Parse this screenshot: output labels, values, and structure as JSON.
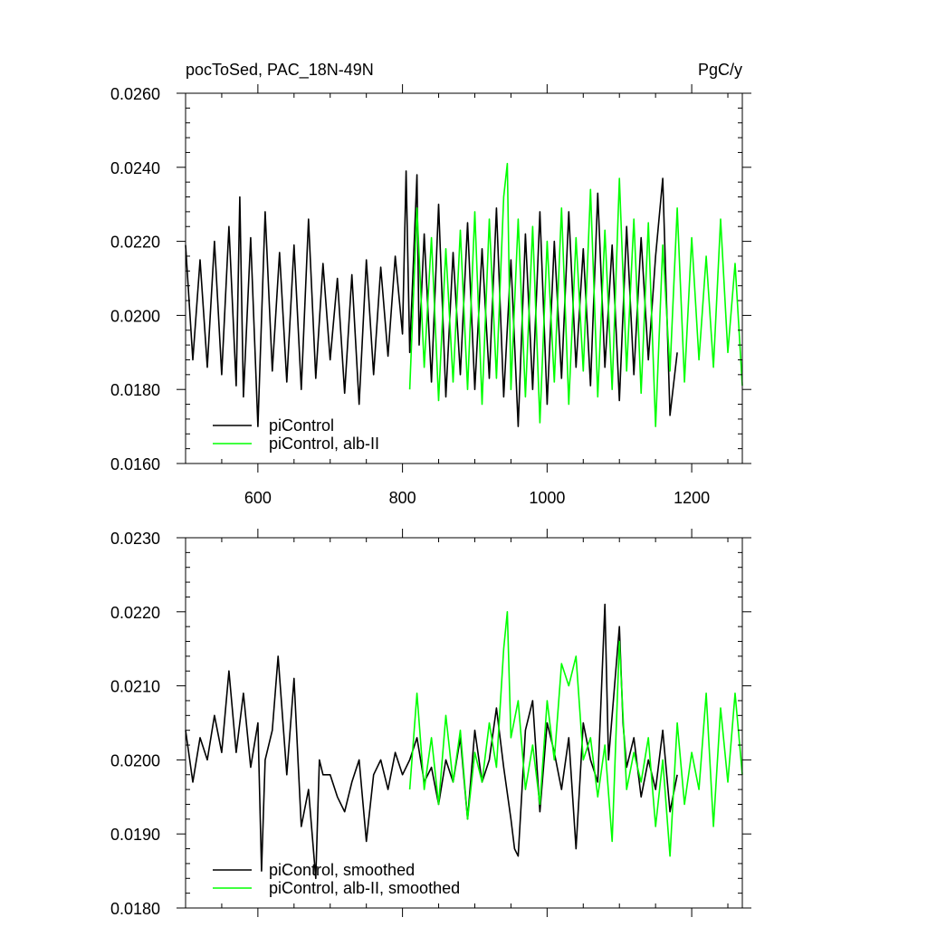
{
  "panel_top": {
    "title_left": "pocToSed, PAC_18N-49N",
    "title_right": "PgC/y"
  },
  "colors": {
    "picontrol": "#000000",
    "albII": "#00ff00",
    "axis": "#000000",
    "background": "#ffffff"
  },
  "chart_data": [
    {
      "type": "line",
      "title": "pocToSed, PAC_18N-49N",
      "units": "PgC/y",
      "xlabel": "",
      "ylabel": "",
      "xlim": [
        500,
        1270
      ],
      "ylim": [
        0.016,
        0.026
      ],
      "xticks": [
        600,
        800,
        1000,
        1200
      ],
      "xtick_labels": [
        "600",
        "800",
        "1000",
        "1200"
      ],
      "yticks": [
        0.016,
        0.018,
        0.02,
        0.022,
        0.024,
        0.026
      ],
      "ytick_labels": [
        "0.0160",
        "0.0180",
        "0.0200",
        "0.0220",
        "0.0240",
        "0.0260"
      ],
      "grid": false,
      "legend_position": "bottom-left",
      "series": [
        {
          "name": "piControl",
          "color": "#000000",
          "x": [
            500,
            510,
            520,
            530,
            540,
            550,
            560,
            570,
            575,
            580,
            590,
            600,
            610,
            620,
            630,
            640,
            650,
            660,
            670,
            680,
            690,
            700,
            710,
            720,
            730,
            740,
            750,
            760,
            770,
            780,
            790,
            800,
            805,
            810,
            820,
            823,
            830,
            840,
            850,
            860,
            870,
            880,
            890,
            900,
            910,
            920,
            930,
            940,
            950,
            960,
            970,
            980,
            990,
            1000,
            1010,
            1020,
            1030,
            1040,
            1050,
            1060,
            1070,
            1080,
            1090,
            1100,
            1110,
            1120,
            1130,
            1140,
            1150,
            1160,
            1170,
            1180
          ],
          "y": [
            0.0219,
            0.0188,
            0.0215,
            0.0186,
            0.022,
            0.0184,
            0.0224,
            0.0181,
            0.0232,
            0.0178,
            0.0221,
            0.017,
            0.0228,
            0.0185,
            0.0217,
            0.0182,
            0.0219,
            0.018,
            0.0226,
            0.0183,
            0.0214,
            0.0188,
            0.021,
            0.0179,
            0.0211,
            0.0176,
            0.0215,
            0.0184,
            0.0213,
            0.0189,
            0.0216,
            0.0195,
            0.0239,
            0.019,
            0.0238,
            0.0192,
            0.0222,
            0.0182,
            0.023,
            0.0178,
            0.0217,
            0.0184,
            0.0225,
            0.018,
            0.0218,
            0.0183,
            0.0229,
            0.0178,
            0.0215,
            0.017,
            0.0222,
            0.018,
            0.0228,
            0.0176,
            0.022,
            0.0183,
            0.0228,
            0.0186,
            0.0218,
            0.0181,
            0.0233,
            0.0186,
            0.0219,
            0.0177,
            0.0224,
            0.0184,
            0.0221,
            0.0188,
            0.0216,
            0.0237,
            0.0173,
            0.019
          ]
        },
        {
          "name": "piControl, alb-II",
          "color": "#00ff00",
          "x": [
            810,
            820,
            830,
            840,
            850,
            860,
            870,
            880,
            890,
            900,
            910,
            920,
            930,
            940,
            945,
            950,
            960,
            970,
            980,
            990,
            1000,
            1010,
            1020,
            1030,
            1040,
            1050,
            1060,
            1070,
            1080,
            1090,
            1100,
            1110,
            1120,
            1130,
            1140,
            1150,
            1160,
            1170,
            1180,
            1190,
            1200,
            1210,
            1220,
            1230,
            1240,
            1250,
            1260,
            1270
          ],
          "y": [
            0.018,
            0.0229,
            0.0186,
            0.0221,
            0.0177,
            0.0218,
            0.0182,
            0.0223,
            0.018,
            0.0228,
            0.0176,
            0.0226,
            0.0183,
            0.0232,
            0.0241,
            0.018,
            0.0226,
            0.0178,
            0.0224,
            0.0171,
            0.022,
            0.0182,
            0.0229,
            0.0176,
            0.0221,
            0.0185,
            0.0234,
            0.0178,
            0.0223,
            0.018,
            0.0237,
            0.0185,
            0.0226,
            0.0179,
            0.0225,
            0.017,
            0.0219,
            0.0185,
            0.0229,
            0.0182,
            0.0221,
            0.0188,
            0.0216,
            0.0186,
            0.0226,
            0.019,
            0.0214,
            0.0181
          ]
        }
      ]
    },
    {
      "type": "line",
      "title": "",
      "xlabel": "",
      "ylabel": "",
      "xlim": [
        500,
        1270
      ],
      "ylim": [
        0.018,
        0.023
      ],
      "xticks": [
        600,
        800,
        1000,
        1200
      ],
      "xtick_labels": [],
      "yticks": [
        0.018,
        0.019,
        0.02,
        0.021,
        0.022,
        0.023
      ],
      "ytick_labels": [
        "0.0180",
        "0.0190",
        "0.0200",
        "0.0210",
        "0.0220",
        "0.0230"
      ],
      "grid": false,
      "legend_position": "bottom-left",
      "series": [
        {
          "name": "piControl, smoothed",
          "color": "#000000",
          "x": [
            500,
            510,
            520,
            530,
            540,
            550,
            560,
            570,
            580,
            590,
            600,
            605,
            610,
            620,
            628,
            640,
            650,
            660,
            670,
            680,
            685,
            690,
            700,
            710,
            720,
            730,
            740,
            750,
            760,
            770,
            780,
            790,
            800,
            810,
            820,
            830,
            840,
            850,
            860,
            870,
            880,
            890,
            900,
            910,
            920,
            930,
            940,
            950,
            955,
            960,
            970,
            980,
            990,
            1000,
            1010,
            1020,
            1030,
            1040,
            1050,
            1060,
            1070,
            1080,
            1085,
            1090,
            1100,
            1105,
            1110,
            1120,
            1130,
            1140,
            1150,
            1160,
            1170,
            1180
          ],
          "y": [
            0.0204,
            0.0197,
            0.0203,
            0.02,
            0.0206,
            0.0201,
            0.0212,
            0.0201,
            0.0209,
            0.0199,
            0.0205,
            0.0185,
            0.02,
            0.0204,
            0.0214,
            0.0198,
            0.0211,
            0.0191,
            0.0196,
            0.0184,
            0.02,
            0.0198,
            0.0198,
            0.0195,
            0.0193,
            0.0197,
            0.02,
            0.0189,
            0.0198,
            0.02,
            0.0196,
            0.0201,
            0.0198,
            0.02,
            0.0203,
            0.0197,
            0.0199,
            0.0194,
            0.02,
            0.0197,
            0.0203,
            0.0192,
            0.0204,
            0.0197,
            0.02,
            0.0207,
            0.0199,
            0.0192,
            0.0188,
            0.0187,
            0.0204,
            0.0208,
            0.0193,
            0.0205,
            0.0201,
            0.0196,
            0.0203,
            0.0188,
            0.0205,
            0.02,
            0.0197,
            0.0221,
            0.02,
            0.0206,
            0.0218,
            0.0205,
            0.0199,
            0.0203,
            0.0195,
            0.02,
            0.0196,
            0.0204,
            0.0193,
            0.0198
          ]
        },
        {
          "name": "piControl, alb-II, smoothed",
          "color": "#00ff00",
          "x": [
            810,
            820,
            830,
            840,
            850,
            860,
            870,
            880,
            890,
            900,
            910,
            920,
            930,
            940,
            945,
            950,
            960,
            970,
            980,
            990,
            1000,
            1010,
            1020,
            1030,
            1040,
            1050,
            1060,
            1070,
            1080,
            1090,
            1100,
            1110,
            1120,
            1130,
            1140,
            1150,
            1160,
            1170,
            1180,
            1190,
            1200,
            1210,
            1220,
            1230,
            1240,
            1250,
            1260,
            1270
          ],
          "y": [
            0.0196,
            0.0209,
            0.0196,
            0.0203,
            0.0194,
            0.0206,
            0.0197,
            0.0204,
            0.0192,
            0.0201,
            0.0197,
            0.0205,
            0.0199,
            0.0215,
            0.022,
            0.0203,
            0.0208,
            0.0196,
            0.0202,
            0.0194,
            0.0208,
            0.02,
            0.0213,
            0.021,
            0.0214,
            0.02,
            0.0203,
            0.0195,
            0.0202,
            0.0189,
            0.0216,
            0.0196,
            0.0201,
            0.0197,
            0.0203,
            0.0191,
            0.02,
            0.0187,
            0.0205,
            0.0194,
            0.0201,
            0.0196,
            0.0209,
            0.0191,
            0.0207,
            0.0197,
            0.0209,
            0.0198
          ]
        }
      ]
    }
  ]
}
